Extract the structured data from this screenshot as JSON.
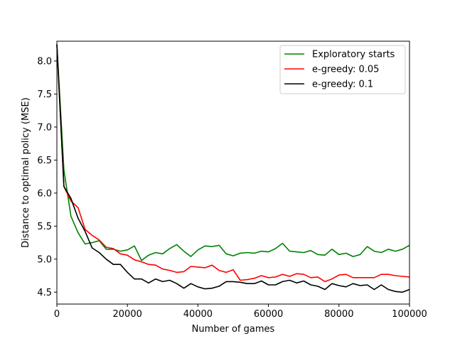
{
  "chart_data": {
    "type": "line",
    "xlabel": "Number of games",
    "ylabel": "Distance to optimal policy (MSE)",
    "xlim": [
      0,
      100000
    ],
    "ylim": [
      4.32,
      8.3
    ],
    "xticks": [
      0,
      20000,
      40000,
      60000,
      80000,
      100000
    ],
    "xtick_labels": [
      "0",
      "20000",
      "40000",
      "60000",
      "80000",
      "100000"
    ],
    "yticks": [
      4.5,
      5.0,
      5.5,
      6.0,
      6.5,
      7.0,
      7.5,
      8.0
    ],
    "ytick_labels": [
      "4.5",
      "5.0",
      "5.5",
      "6.0",
      "6.5",
      "7.0",
      "7.5",
      "8.0"
    ],
    "grid": false,
    "legend_position": "top-right",
    "x": [
      0,
      2000,
      4000,
      6000,
      8000,
      10000,
      12000,
      14000,
      16000,
      18000,
      20000,
      22000,
      24000,
      26000,
      28000,
      30000,
      32000,
      34000,
      36000,
      38000,
      40000,
      42000,
      44000,
      46000,
      48000,
      50000,
      52000,
      54000,
      56000,
      58000,
      60000,
      62000,
      64000,
      66000,
      68000,
      70000,
      72000,
      74000,
      76000,
      78000,
      80000,
      82000,
      84000,
      86000,
      88000,
      90000,
      92000,
      94000,
      96000,
      98000,
      100000
    ],
    "series": [
      {
        "name": "Exploratory starts",
        "color": "#008000",
        "values": [
          8.25,
          6.35,
          5.65,
          5.4,
          5.23,
          5.25,
          5.28,
          5.15,
          5.15,
          5.12,
          5.14,
          5.2,
          4.98,
          5.06,
          5.1,
          5.08,
          5.16,
          5.22,
          5.12,
          5.04,
          5.14,
          5.2,
          5.19,
          5.21,
          5.08,
          5.05,
          5.09,
          5.1,
          5.09,
          5.12,
          5.11,
          5.16,
          5.24,
          5.12,
          5.11,
          5.1,
          5.13,
          5.07,
          5.06,
          5.15,
          5.07,
          5.09,
          5.04,
          5.07,
          5.19,
          5.12,
          5.1,
          5.15,
          5.12,
          5.15,
          5.21
        ]
      },
      {
        "name": "e-greedy: 0.05",
        "color": "#ff0000",
        "values": [
          8.25,
          6.1,
          5.88,
          5.78,
          5.45,
          5.36,
          5.29,
          5.18,
          5.16,
          5.08,
          5.06,
          4.99,
          4.96,
          4.92,
          4.91,
          4.85,
          4.83,
          4.8,
          4.81,
          4.89,
          4.88,
          4.87,
          4.91,
          4.83,
          4.8,
          4.84,
          4.68,
          4.69,
          4.71,
          4.75,
          4.72,
          4.73,
          4.77,
          4.74,
          4.78,
          4.77,
          4.72,
          4.73,
          4.66,
          4.7,
          4.76,
          4.77,
          4.72,
          4.72,
          4.72,
          4.72,
          4.77,
          4.77,
          4.75,
          4.74,
          4.73
        ]
      },
      {
        "name": "e-greedy: 0.1",
        "color": "#000000",
        "values": [
          8.25,
          6.1,
          5.92,
          5.62,
          5.42,
          5.17,
          5.1,
          5.0,
          4.92,
          4.92,
          4.8,
          4.7,
          4.7,
          4.64,
          4.7,
          4.66,
          4.68,
          4.63,
          4.56,
          4.63,
          4.58,
          4.55,
          4.56,
          4.59,
          4.66,
          4.66,
          4.65,
          4.63,
          4.63,
          4.67,
          4.61,
          4.61,
          4.66,
          4.68,
          4.64,
          4.67,
          4.61,
          4.59,
          4.54,
          4.63,
          4.6,
          4.58,
          4.63,
          4.6,
          4.61,
          4.54,
          4.61,
          4.54,
          4.51,
          4.5,
          4.54
        ]
      }
    ]
  }
}
